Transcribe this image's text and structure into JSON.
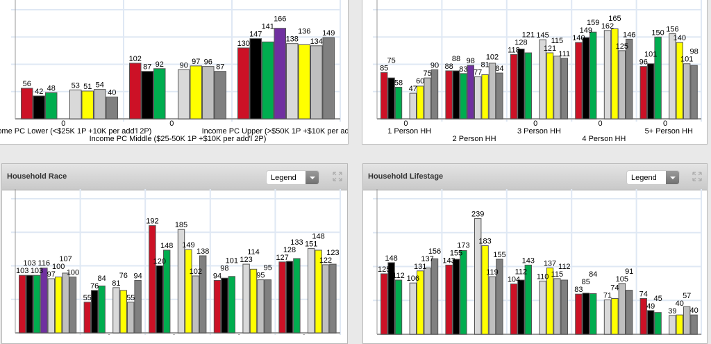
{
  "series_colors": [
    "#cc1126",
    "#000000",
    "#00ad4f",
    "#7030a0",
    "#d9d9d9",
    "#ffff00",
    "#bfbfbf",
    "#808080"
  ],
  "panels": [
    {
      "title": ""
    },
    {
      "title": ""
    },
    {
      "title": "Household Race",
      "legend_label": "Legend",
      "icons": [
        "chevron-down-icon",
        "expand-icon"
      ]
    },
    {
      "title": "Household Lifestage",
      "legend_label": "Legend",
      "icons": [
        "chevron-down-icon",
        "expand-icon"
      ]
    }
  ],
  "chart_data": [
    {
      "type": "bar",
      "title": "",
      "categories": [
        "Income PC Lower (<$25K 1P +10K per add'l 2P)",
        "Income PC Middle ($25-50K 1P +$10K per add'l 2P)",
        "Income PC Upper (>$50K 1P +$10K per add'l 2P)"
      ],
      "values": [
        [
          56,
          42,
          48,
          0,
          53,
          51,
          54,
          40
        ],
        [
          102,
          87,
          92,
          0,
          90,
          97,
          96,
          87
        ],
        [
          130,
          147,
          141,
          166,
          138,
          136,
          134,
          149
        ]
      ],
      "ylim": [
        0,
        200
      ],
      "grid": true
    },
    {
      "type": "bar",
      "title": "",
      "categories": [
        "1 Person HH",
        "2 Person HH",
        "3 Person HH",
        "4 Person HH",
        "5+ Person HH"
      ],
      "values": [
        [
          85,
          75,
          58,
          0,
          47,
          60,
          75,
          90
        ],
        [
          88,
          88,
          83,
          98,
          77,
          81,
          102,
          84
        ],
        [
          118,
          128,
          121,
          0,
          145,
          121,
          115,
          111
        ],
        [
          140,
          149,
          159,
          0,
          162,
          165,
          125,
          146
        ],
        [
          96,
          101,
          150,
          0,
          156,
          140,
          101,
          98
        ]
      ],
      "ylim": [
        0,
        200
      ],
      "grid": true
    },
    {
      "type": "bar",
      "title": "Household Race",
      "categories": [],
      "values": [
        [
          103,
          103,
          103,
          116,
          97,
          100,
          107,
          100
        ],
        [
          55,
          76,
          84,
          0,
          81,
          76,
          55,
          94
        ],
        [
          192,
          120,
          148,
          0,
          185,
          149,
          102,
          138
        ],
        [
          94,
          98,
          101,
          0,
          123,
          114,
          95,
          95
        ],
        [
          127,
          128,
          133,
          0,
          151,
          148,
          122,
          123
        ]
      ],
      "ylim": [
        0,
        240
      ],
      "grid": true
    },
    {
      "type": "bar",
      "title": "Household Lifestage",
      "categories": [],
      "values": [
        [
          125,
          148,
          112,
          0,
          106,
          131,
          137,
          156
        ],
        [
          143,
          155,
          173,
          0,
          239,
          183,
          119,
          155
        ],
        [
          104,
          112,
          143,
          0,
          110,
          137,
          115,
          112
        ],
        [
          83,
          85,
          84,
          0,
          71,
          74,
          105,
          91
        ],
        [
          74,
          49,
          45,
          0,
          39,
          40,
          57,
          40
        ]
      ],
      "ylim": [
        0,
        280
      ],
      "grid": true
    }
  ]
}
